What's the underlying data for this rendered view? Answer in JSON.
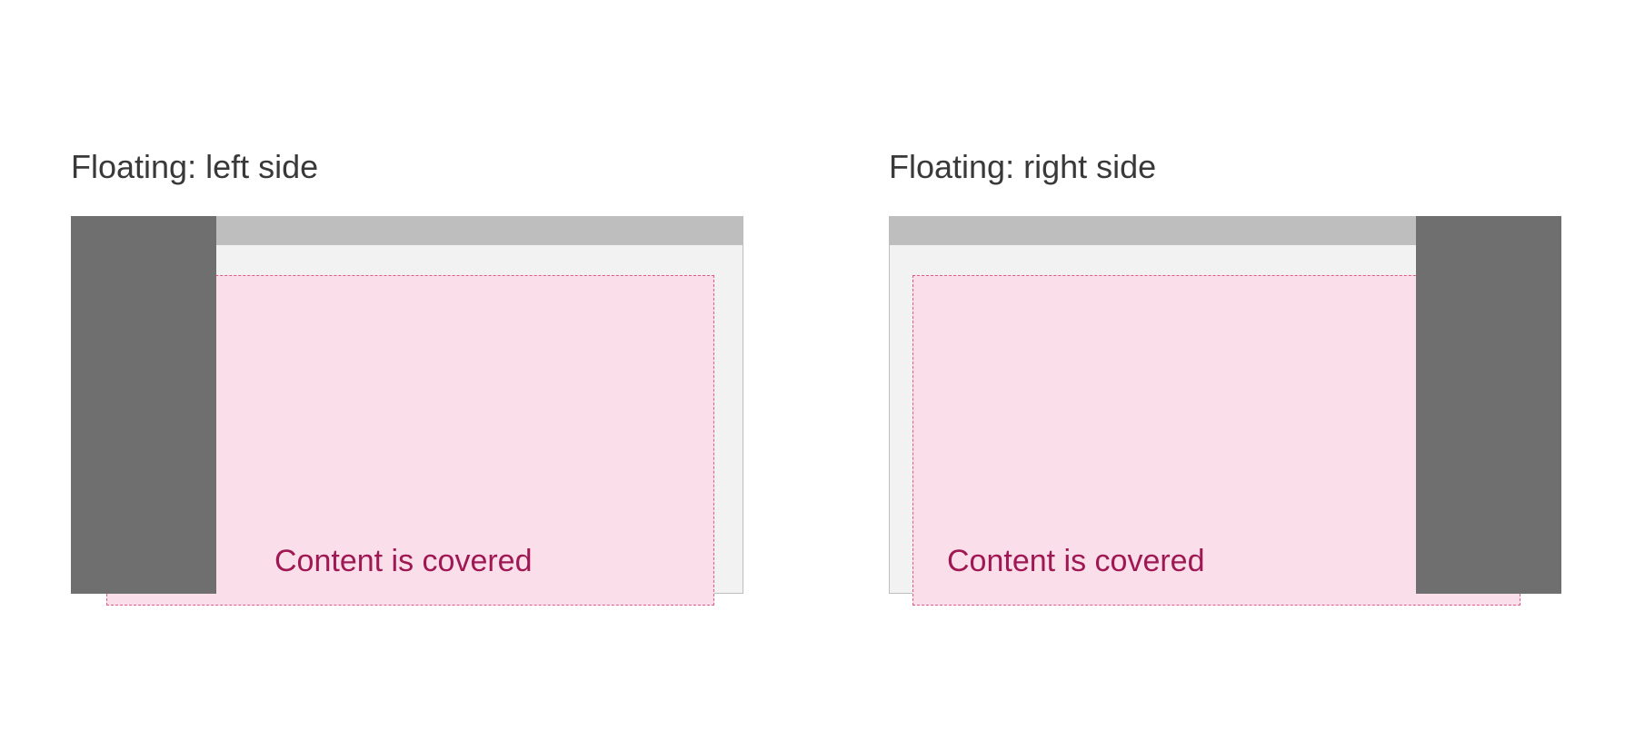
{
  "diagrams": [
    {
      "heading": "Floating: left side",
      "content_label": "Content is covered"
    },
    {
      "heading": "Floating: right side",
      "content_label": "Content is covered"
    }
  ],
  "colors": {
    "side_nav": "#6f6f6f",
    "top_bar": "#bebebe",
    "page_background": "#f2f2f2",
    "content_fill": "#fadeea",
    "content_border": "#e05b8c",
    "content_text": "#9f1853",
    "heading_text": "#393939"
  }
}
